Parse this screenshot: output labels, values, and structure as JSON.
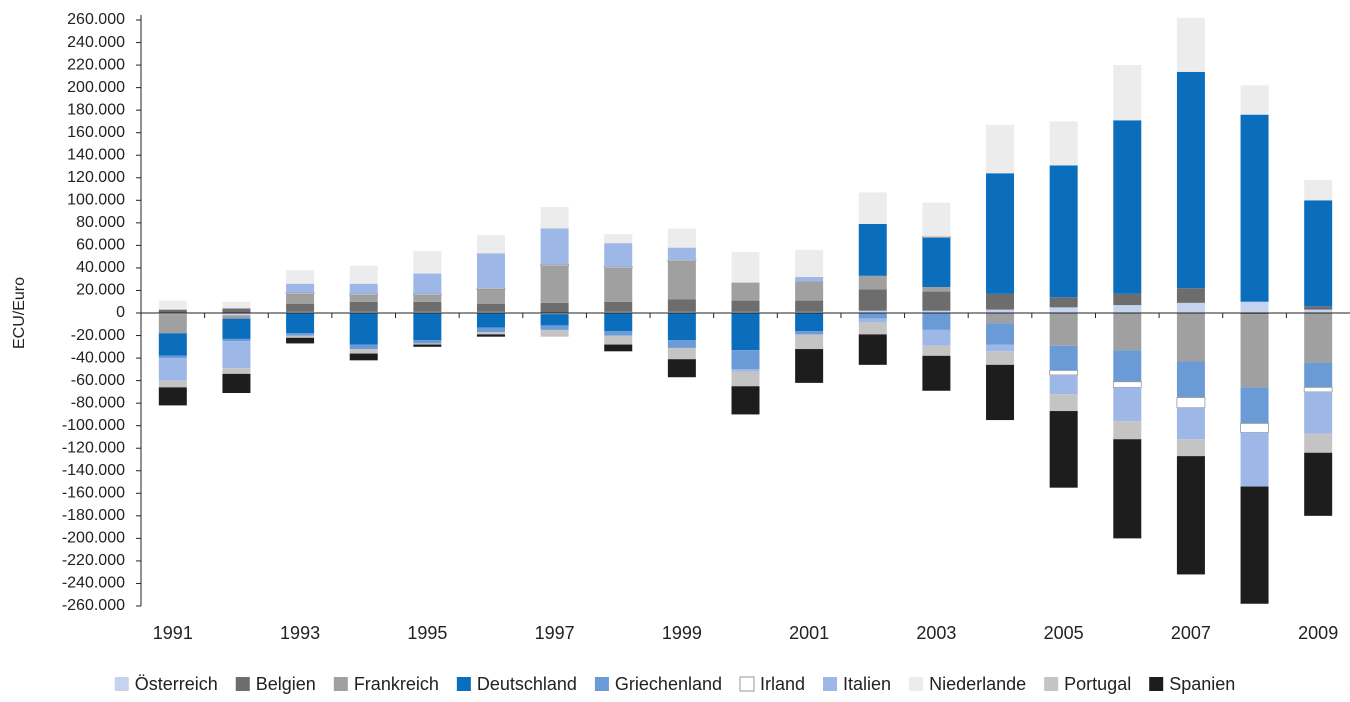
{
  "chart_data": {
    "type": "stacked_bar",
    "y_label": "ECU/Euro",
    "categories": [
      "1991",
      null,
      "1993",
      null,
      "1995",
      null,
      "1997",
      null,
      "1999",
      null,
      "2001",
      null,
      "2003",
      null,
      "2005",
      null,
      "2007",
      null,
      "2009"
    ],
    "ylim": [
      -260000,
      260000
    ],
    "yticks": [
      {
        "value": 260000,
        "label": "260.000"
      },
      {
        "value": 240000,
        "label": "240.000"
      },
      {
        "value": 220000,
        "label": "220.000"
      },
      {
        "value": 200000,
        "label": "200.000"
      },
      {
        "value": 180000,
        "label": "180.000"
      },
      {
        "value": 160000,
        "label": "160.000"
      },
      {
        "value": 140000,
        "label": "140.000"
      },
      {
        "value": 120000,
        "label": "120.000"
      },
      {
        "value": 100000,
        "label": "100.000"
      },
      {
        "value": 80000,
        "label": "80.000"
      },
      {
        "value": 60000,
        "label": "60.000"
      },
      {
        "value": 40000,
        "label": "40.000"
      },
      {
        "value": 20000,
        "label": "20.000"
      },
      0,
      {
        "value": -20000,
        "label": "-20.000"
      },
      {
        "value": -40000,
        "label": "-40.000"
      },
      {
        "value": -60000,
        "label": "-60.000"
      },
      {
        "value": -80000,
        "label": "-80.000"
      },
      {
        "value": -100000,
        "label": "-100.000"
      },
      {
        "value": -120000,
        "label": "-120.000"
      },
      {
        "value": -140000,
        "label": "-140.000"
      },
      {
        "value": -160000,
        "label": "-160.000"
      },
      {
        "value": -180000,
        "label": "-180.000"
      },
      {
        "value": -200000,
        "label": "-200.000"
      },
      {
        "value": -220000,
        "label": "-220.000"
      },
      {
        "value": -240000,
        "label": "-240.000"
      },
      {
        "value": -260000,
        "label": "-260.000"
      }
    ],
    "series": [
      {
        "name": "Österreich",
        "color": "#c5d3ee",
        "values": [
          -1000,
          -2000,
          1000,
          1000,
          1000,
          1000,
          -1000,
          1000,
          1000,
          1000,
          1000,
          2000,
          2000,
          3000,
          5000,
          7000,
          9000,
          10000,
          3000
        ]
      },
      {
        "name": "Belgien",
        "color": "#6d6d6d",
        "values": [
          3000,
          4000,
          7000,
          9000,
          9000,
          7000,
          9000,
          9000,
          11000,
          10000,
          10000,
          19000,
          17000,
          14000,
          9000,
          10000,
          13000,
          -1000,
          3000
        ]
      },
      {
        "name": "Frankreich",
        "color": "#a0a0a0",
        "values": [
          -17000,
          -3000,
          9000,
          6000,
          6000,
          13000,
          33000,
          30000,
          34000,
          16000,
          17000,
          12000,
          4000,
          -9000,
          -29000,
          -33000,
          -43000,
          -65000,
          -44000
        ]
      },
      {
        "name": "Deutschland",
        "color": "#0a6ebd",
        "values": [
          -20000,
          -18000,
          -18000,
          -28000,
          -24000,
          -13000,
          -10000,
          -16000,
          -24000,
          -33000,
          -16000,
          46000,
          44000,
          107000,
          117000,
          154000,
          192000,
          166000,
          94000
        ]
      },
      {
        "name": "Griechenland",
        "color": "#6b9bd6",
        "values": [
          -2000,
          -2000,
          -2000,
          -4000,
          -3000,
          -4000,
          -4000,
          -4000,
          -7000,
          -17000,
          -3000,
          -5000,
          -15000,
          -19000,
          -22000,
          -28000,
          -32000,
          -32000,
          -22000
        ]
      },
      {
        "name": "Irland",
        "color": "#ffffff",
        "values": [
          0,
          0,
          1000,
          1000,
          1000,
          1000,
          1000,
          1000,
          1000,
          0,
          0,
          0,
          1000,
          0,
          -4000,
          -5000,
          -9000,
          -8000,
          -4000
        ]
      },
      {
        "name": "Italien",
        "color": "#9db7e6",
        "values": [
          -20000,
          -24000,
          8000,
          9000,
          18000,
          31000,
          32000,
          21000,
          11000,
          -2000,
          4000,
          -3000,
          -14000,
          -6000,
          -17000,
          -30000,
          -28000,
          -48000,
          -37000
        ]
      },
      {
        "name": "Niederlande",
        "color": "#ececec",
        "values": [
          8000,
          6000,
          12000,
          16000,
          20000,
          16000,
          19000,
          8000,
          17000,
          27000,
          24000,
          28000,
          30000,
          43000,
          39000,
          49000,
          48000,
          26000,
          18000
        ]
      },
      {
        "name": "Portugal",
        "color": "#c4c4c4",
        "values": [
          -6000,
          -5000,
          -2000,
          -4000,
          -1000,
          -2000,
          -6000,
          -8000,
          -10000,
          -13000,
          -13000,
          -11000,
          -9000,
          -12000,
          -15000,
          -16000,
          -15000,
          0,
          -17000
        ]
      },
      {
        "name": "Spanien",
        "color": "#1d1d1d",
        "values": [
          -16000,
          -17000,
          -5000,
          -6000,
          -2000,
          -2000,
          0,
          -6000,
          -16000,
          -25000,
          -30000,
          -27000,
          -31000,
          -49000,
          -68000,
          -88000,
          -105000,
          -104000,
          -56000
        ]
      }
    ]
  }
}
